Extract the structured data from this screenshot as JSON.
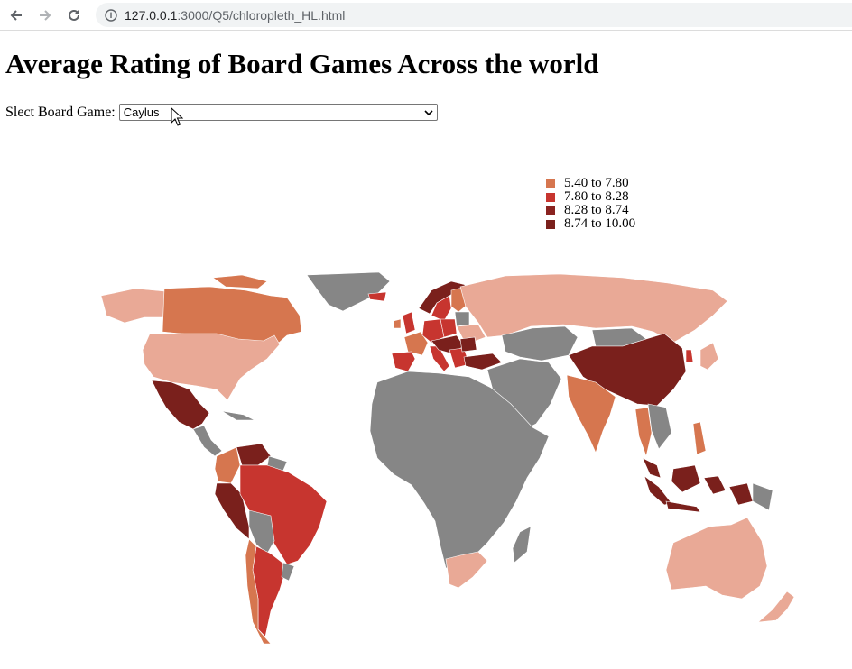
{
  "browser": {
    "url_host": "127.0.0.1",
    "url_rest": ":3000/Q5/chloropleth_HL.html"
  },
  "page": {
    "title": "Average Rating of Board Games Across the world",
    "select_label": "Slect Board Game:",
    "selected_game": "Caylus"
  },
  "legend": [
    {
      "label": "5.40 to 7.80",
      "color": "#d6764f"
    },
    {
      "label": "7.80 to 8.28",
      "color": "#c7352f"
    },
    {
      "label": "8.28 to 8.74",
      "color": "#8a2320"
    },
    {
      "label": "8.74 to 10.00",
      "color": "#7a201c"
    }
  ],
  "colors": {
    "no_data": "#868686",
    "lightest": "#e9a996",
    "tier1": "#d6764f",
    "tier2": "#c7352f",
    "tier3": "#8a2320",
    "tier4": "#7a201c"
  }
}
